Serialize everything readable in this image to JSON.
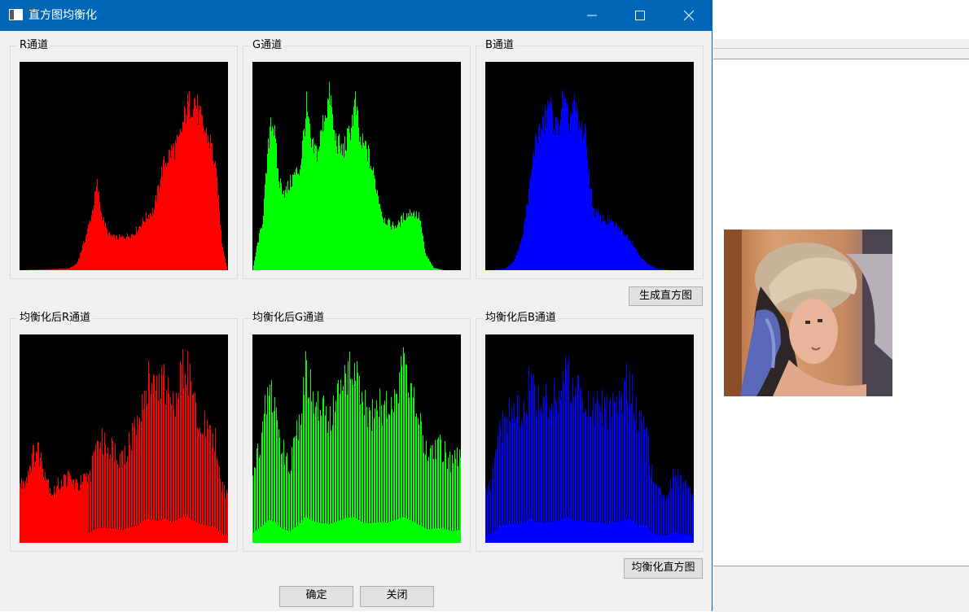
{
  "window": {
    "title": "直方图均衡化"
  },
  "groups": {
    "r": "R通道",
    "g": "G通道",
    "b": "B通道",
    "r_eq": "均衡化后R通道",
    "g_eq": "均衡化后G通道",
    "b_eq": "均衡化后B通道"
  },
  "buttons": {
    "generate": "生成直方图",
    "equalize": "均衡化直方图",
    "ok": "确定",
    "close": "关闭"
  },
  "colors": {
    "r": "#ff0000",
    "g": "#00ff00",
    "b": "#0000ff",
    "titlebar": "#0067b8"
  },
  "chart_data": [
    {
      "type": "bar",
      "title": "R通道",
      "color": "#ff0000",
      "xlim": [
        0,
        255
      ],
      "anchors": [
        [
          0,
          0
        ],
        [
          60,
          2
        ],
        [
          70,
          8
        ],
        [
          80,
          38
        ],
        [
          88,
          68
        ],
        [
          95,
          105
        ],
        [
          100,
          70
        ],
        [
          108,
          45
        ],
        [
          115,
          40
        ],
        [
          125,
          40
        ],
        [
          140,
          45
        ],
        [
          155,
          65
        ],
        [
          165,
          75
        ],
        [
          175,
          125
        ],
        [
          185,
          145
        ],
        [
          195,
          155
        ],
        [
          205,
          200
        ],
        [
          215,
          210
        ],
        [
          220,
          190
        ],
        [
          225,
          175
        ],
        [
          235,
          155
        ],
        [
          242,
          110
        ],
        [
          248,
          35
        ],
        [
          252,
          15
        ],
        [
          255,
          0
        ]
      ]
    },
    {
      "type": "bar",
      "title": "G通道",
      "color": "#00ff00",
      "xlim": [
        0,
        255
      ],
      "anchors": [
        [
          0,
          0
        ],
        [
          5,
          28
        ],
        [
          12,
          60
        ],
        [
          18,
          135
        ],
        [
          22,
          190
        ],
        [
          26,
          175
        ],
        [
          32,
          110
        ],
        [
          40,
          95
        ],
        [
          50,
          115
        ],
        [
          58,
          125
        ],
        [
          66,
          200
        ],
        [
          72,
          150
        ],
        [
          80,
          145
        ],
        [
          88,
          190
        ],
        [
          95,
          215
        ],
        [
          100,
          165
        ],
        [
          110,
          145
        ],
        [
          118,
          165
        ],
        [
          126,
          205
        ],
        [
          132,
          155
        ],
        [
          140,
          150
        ],
        [
          150,
          110
        ],
        [
          160,
          65
        ],
        [
          170,
          55
        ],
        [
          178,
          55
        ],
        [
          185,
          65
        ],
        [
          195,
          72
        ],
        [
          205,
          65
        ],
        [
          212,
          20
        ],
        [
          222,
          3
        ],
        [
          235,
          0
        ],
        [
          255,
          0
        ]
      ]
    },
    {
      "type": "bar",
      "title": "B通道",
      "color": "#0000ff",
      "xlim": [
        0,
        255
      ],
      "anchors": [
        [
          0,
          0
        ],
        [
          25,
          2
        ],
        [
          35,
          12
        ],
        [
          45,
          40
        ],
        [
          55,
          110
        ],
        [
          62,
          165
        ],
        [
          70,
          175
        ],
        [
          78,
          205
        ],
        [
          82,
          190
        ],
        [
          88,
          170
        ],
        [
          95,
          210
        ],
        [
          102,
          180
        ],
        [
          108,
          205
        ],
        [
          115,
          175
        ],
        [
          122,
          170
        ],
        [
          128,
          110
        ],
        [
          132,
          75
        ],
        [
          140,
          65
        ],
        [
          150,
          60
        ],
        [
          160,
          55
        ],
        [
          170,
          45
        ],
        [
          178,
          38
        ],
        [
          188,
          20
        ],
        [
          198,
          8
        ],
        [
          210,
          2
        ],
        [
          230,
          0
        ],
        [
          255,
          0
        ]
      ]
    },
    {
      "type": "bar",
      "title": "均衡化后R通道",
      "color": "#ff0000",
      "xlim": [
        0,
        255
      ],
      "sparse_start": 85,
      "anchors": [
        [
          0,
          70
        ],
        [
          8,
          80
        ],
        [
          15,
          105
        ],
        [
          22,
          115
        ],
        [
          30,
          90
        ],
        [
          40,
          60
        ],
        [
          50,
          75
        ],
        [
          60,
          80
        ],
        [
          70,
          70
        ],
        [
          85,
          80
        ],
        [
          95,
          120
        ],
        [
          105,
          125
        ],
        [
          115,
          115
        ],
        [
          125,
          105
        ],
        [
          135,
          125
        ],
        [
          145,
          145
        ],
        [
          150,
          180
        ],
        [
          158,
          200
        ],
        [
          168,
          180
        ],
        [
          178,
          200
        ],
        [
          188,
          165
        ],
        [
          196,
          200
        ],
        [
          204,
          225
        ],
        [
          210,
          195
        ],
        [
          218,
          165
        ],
        [
          230,
          140
        ],
        [
          240,
          125
        ],
        [
          248,
          70
        ],
        [
          255,
          55
        ]
      ]
    },
    {
      "type": "bar",
      "title": "均衡化后G通道",
      "color": "#00ff00",
      "xlim": [
        0,
        255
      ],
      "sparse_start": 0,
      "anchors": [
        [
          0,
          80
        ],
        [
          8,
          120
        ],
        [
          15,
          160
        ],
        [
          20,
          190
        ],
        [
          28,
          170
        ],
        [
          35,
          120
        ],
        [
          45,
          95
        ],
        [
          55,
          140
        ],
        [
          65,
          215
        ],
        [
          75,
          175
        ],
        [
          85,
          160
        ],
        [
          95,
          155
        ],
        [
          105,
          180
        ],
        [
          115,
          205
        ],
        [
          125,
          210
        ],
        [
          135,
          165
        ],
        [
          145,
          160
        ],
        [
          155,
          170
        ],
        [
          165,
          165
        ],
        [
          175,
          185
        ],
        [
          185,
          215
        ],
        [
          195,
          180
        ],
        [
          205,
          145
        ],
        [
          215,
          110
        ],
        [
          225,
          120
        ],
        [
          235,
          115
        ],
        [
          245,
          95
        ],
        [
          255,
          110
        ]
      ]
    },
    {
      "type": "bar",
      "title": "均衡化后B通道",
      "color": "#0000ff",
      "xlim": [
        0,
        255
      ],
      "sparse_start": 0,
      "anchors": [
        [
          0,
          60
        ],
        [
          8,
          75
        ],
        [
          14,
          125
        ],
        [
          20,
          140
        ],
        [
          28,
          155
        ],
        [
          38,
          160
        ],
        [
          48,
          165
        ],
        [
          55,
          200
        ],
        [
          62,
          170
        ],
        [
          72,
          170
        ],
        [
          82,
          175
        ],
        [
          92,
          180
        ],
        [
          100,
          215
        ],
        [
          108,
          175
        ],
        [
          118,
          185
        ],
        [
          128,
          170
        ],
        [
          138,
          170
        ],
        [
          148,
          160
        ],
        [
          158,
          170
        ],
        [
          168,
          185
        ],
        [
          178,
          200
        ],
        [
          188,
          150
        ],
        [
          198,
          140
        ],
        [
          205,
          75
        ],
        [
          212,
          65
        ],
        [
          222,
          60
        ],
        [
          232,
          85
        ],
        [
          242,
          75
        ],
        [
          255,
          60
        ]
      ]
    }
  ]
}
